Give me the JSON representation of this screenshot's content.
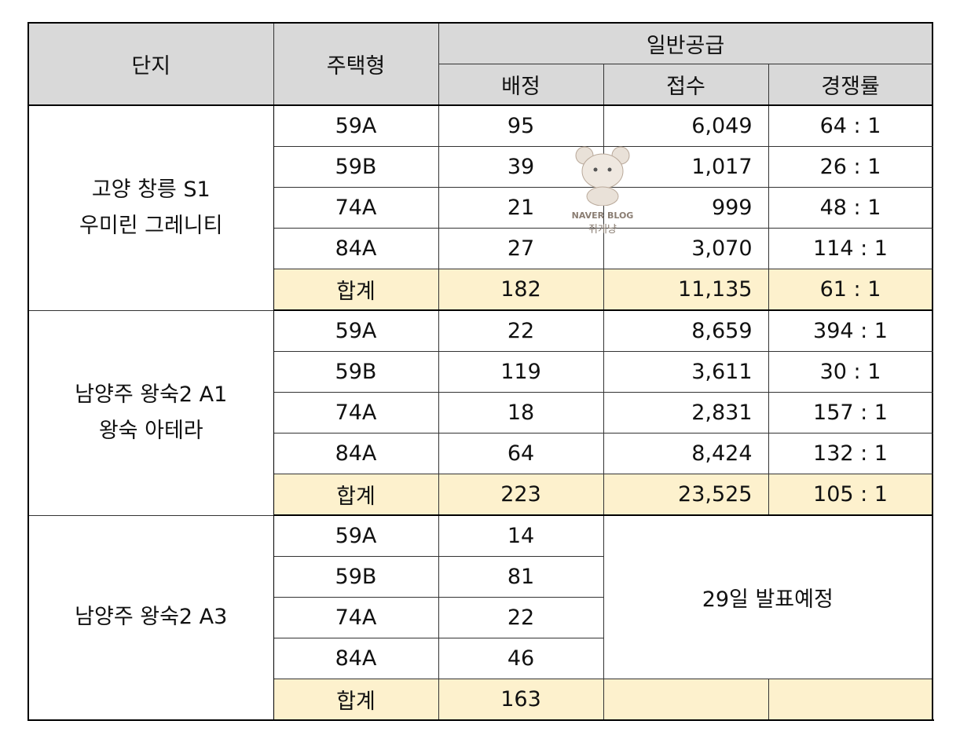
{
  "header": {
    "complex": "단지",
    "type": "주택형",
    "general": "일반공급",
    "allotted": "배정",
    "received": "접수",
    "ratio": "경쟁률"
  },
  "groups": [
    {
      "name": [
        "고양 창릉 S1",
        "우미린 그레니티"
      ],
      "rows": [
        [
          "59A",
          "95",
          "6,049",
          "64 : 1"
        ],
        [
          "59B",
          "39",
          "1,017",
          "26 : 1"
        ],
        [
          "74A",
          "21",
          "999",
          "48 : 1"
        ],
        [
          "84A",
          "27",
          "3,070",
          "114 : 1"
        ]
      ],
      "total": [
        "합계",
        "182",
        "11,135",
        "61 : 1"
      ]
    },
    {
      "name": [
        "남양주 왕숙2 A1",
        "왕숙 아테라"
      ],
      "rows": [
        [
          "59A",
          "22",
          "8,659",
          "394 : 1"
        ],
        [
          "59B",
          "119",
          "3,611",
          "30 : 1"
        ],
        [
          "74A",
          "18",
          "2,831",
          "157 : 1"
        ],
        [
          "84A",
          "64",
          "8,424",
          "132 : 1"
        ]
      ],
      "total": [
        "합계",
        "223",
        "23,525",
        "105 : 1"
      ]
    },
    {
      "name": [
        "남양주 왕숙2 A3"
      ],
      "rows": [
        [
          "59A",
          "14"
        ],
        [
          "59B",
          "81"
        ],
        [
          "74A",
          "22"
        ],
        [
          "84A",
          "46"
        ]
      ],
      "note": "29일 발표예정",
      "total": [
        "합계",
        "163"
      ]
    }
  ],
  "watermark": {
    "brand": "NAVER BLOG",
    "author": "쥐개냥"
  }
}
